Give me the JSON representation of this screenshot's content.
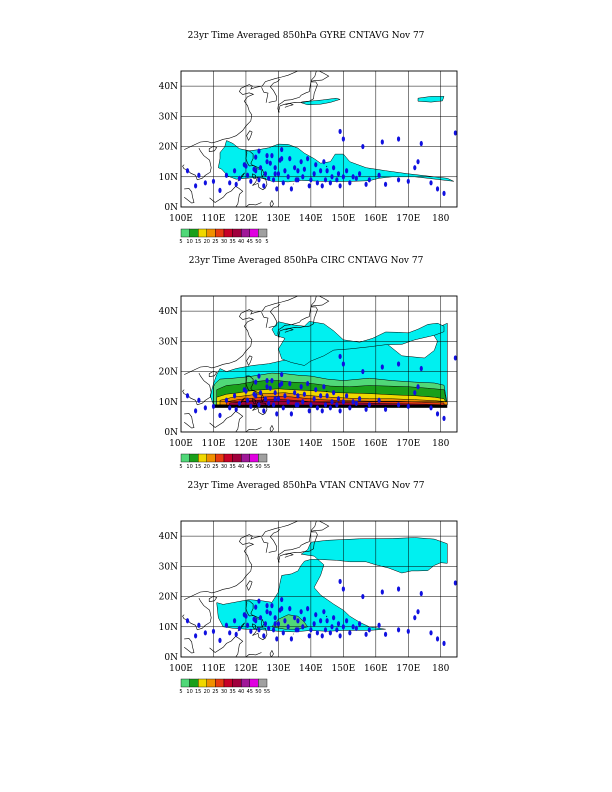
{
  "panels": [
    {
      "title": "23yr Time Averaged 850hPa GYRE CNTAVG Nov 77",
      "colorbar_labels": [
        "5",
        "10",
        "15",
        "20",
        "25",
        "30",
        "35",
        "40",
        "45",
        "50",
        "5"
      ],
      "field": "gyre"
    },
    {
      "title": "23yr Time Averaged 850hPa CIRC CNTAVG Nov 77",
      "colorbar_labels": [
        "5",
        "10",
        "15",
        "20",
        "25",
        "30",
        "35",
        "40",
        "45",
        "50",
        "55"
      ],
      "field": "circ"
    },
    {
      "title": "23yr Time Averaged 850hPa VTAN CNTAVG Nov 77",
      "colorbar_labels": [
        "5",
        "10",
        "15",
        "20",
        "25",
        "30",
        "35",
        "40",
        "45",
        "50",
        "55"
      ],
      "field": "vtan"
    }
  ],
  "map": {
    "lon_labels": [
      "100E",
      "110E",
      "120E",
      "130E",
      "140E",
      "150E",
      "160E",
      "170E",
      "180"
    ],
    "lat_labels": [
      "0N",
      "10N",
      "20N",
      "30N",
      "40N"
    ],
    "lon_values": [
      100,
      110,
      120,
      130,
      140,
      150,
      160,
      170,
      180
    ],
    "lat_values": [
      0,
      10,
      20,
      30,
      40
    ],
    "lon_range": [
      100,
      185
    ],
    "lat_range": [
      0,
      45
    ]
  },
  "colorbar": {
    "colors": [
      "#50d878",
      "#1aa01a",
      "#f0d800",
      "#f09000",
      "#e83c10",
      "#c80028",
      "#a0003c",
      "#a01898",
      "#e000e0",
      "#a0a0a0"
    ]
  },
  "field_colors": {
    "light": "#00f0f0",
    "marker": "#1010e0"
  }
}
